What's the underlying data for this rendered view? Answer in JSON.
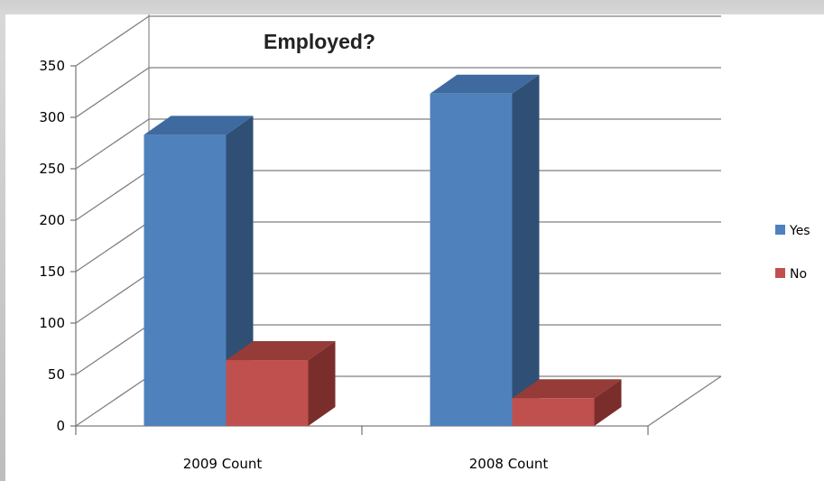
{
  "chart_data": {
    "type": "bar",
    "title": "Employed?",
    "categories": [
      "2009 Count",
      "2008 Count"
    ],
    "series": [
      {
        "name": "Yes",
        "values": [
          283,
          323
        ],
        "color": "#4f81bd",
        "side_color": "#2f4f74",
        "top_color": "#3e6aa0"
      },
      {
        "name": "No",
        "values": [
          64,
          27
        ],
        "color": "#c0504d",
        "side_color": "#7a2e2c",
        "top_color": "#953b38"
      }
    ],
    "ylim": [
      0,
      350
    ],
    "yticks": [
      "0",
      "50",
      "100",
      "150",
      "200",
      "250",
      "300",
      "350"
    ],
    "grid": true,
    "legend_position": "right",
    "style": "3d-column"
  }
}
